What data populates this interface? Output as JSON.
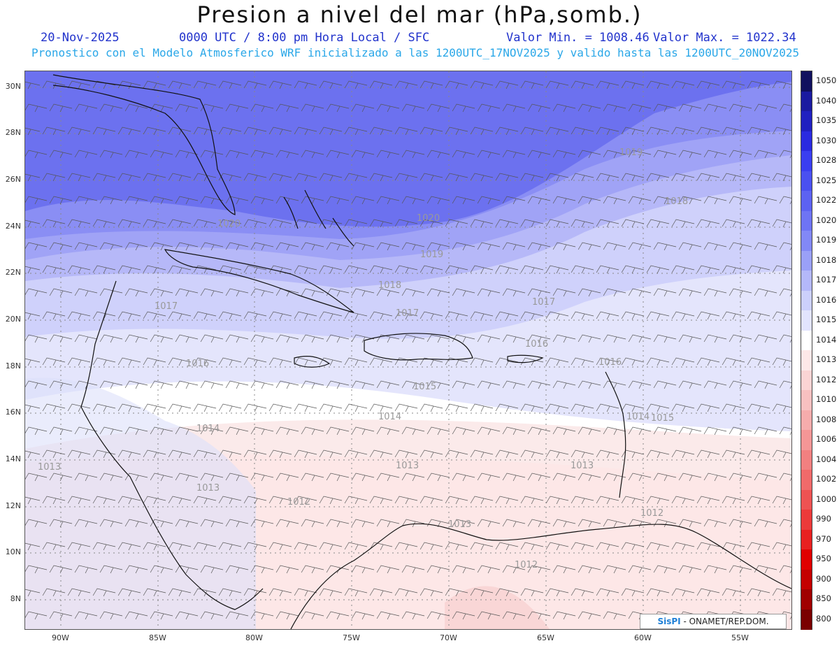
{
  "header": {
    "title": "Presion a nivel del mar (hPa,somb.)",
    "date": "20-Nov-2025",
    "time_info": "0000 UTC / 8:00 pm Hora Local / SFC",
    "min_value": "Valor Min. = 1008.46",
    "max_value": "Valor Max. = 1022.34",
    "forecast_info": "Pronostico con el Modelo Atmosferico WRF inicializado a las 1200UTC_17NOV2025 y valido hasta las  1200UTC_20NOV2025"
  },
  "map": {
    "lat_labels": [
      "30N",
      "28N",
      "26N",
      "24N",
      "22N",
      "20N",
      "18N",
      "16N",
      "14N",
      "12N",
      "10N",
      "8N"
    ],
    "lon_labels": [
      "90W",
      "85W",
      "80W",
      "75W",
      "70W",
      "65W",
      "60W",
      "55W"
    ],
    "isobar_labels": [
      "1019",
      "1018",
      "1020",
      "1020",
      "1019",
      "1018",
      "1017",
      "1017",
      "1017",
      "1016",
      "1016",
      "1016",
      "1015",
      "1015",
      "1014",
      "1014",
      "1014",
      "1013",
      "1013",
      "1013",
      "1012",
      "1012",
      "1013",
      "1012",
      "1013"
    ]
  },
  "colorbar": {
    "labels": [
      "1050",
      "1040",
      "1035",
      "1030",
      "1028",
      "1025",
      "1022",
      "1020",
      "1019",
      "1018",
      "1017",
      "1016",
      "1015",
      "1014",
      "1013",
      "1012",
      "1010",
      "1008",
      "1006",
      "1004",
      "1002",
      "1000",
      "990",
      "970",
      "950",
      "900",
      "850",
      "800"
    ],
    "colors": [
      "#10105e",
      "#1a1aa0",
      "#2020c0",
      "#2a2ae0",
      "#3a3ef0",
      "#4a50f0",
      "#5c62f2",
      "#6e74f4",
      "#8288f6",
      "#9aa0f8",
      "#b4b8fa",
      "#ccd0fc",
      "#e2e4fe",
      "#ffffff",
      "#fde8e8",
      "#fbd4d4",
      "#f8c0c0",
      "#f6acac",
      "#f49696",
      "#f28080",
      "#f06a6a",
      "#ee5252",
      "#ec3a3a",
      "#e82020",
      "#e00000",
      "#c40000",
      "#a00000",
      "#7a0000"
    ]
  },
  "badge": {
    "brand": "SisPI",
    "text": "- ONAMET/REP.DOM."
  }
}
